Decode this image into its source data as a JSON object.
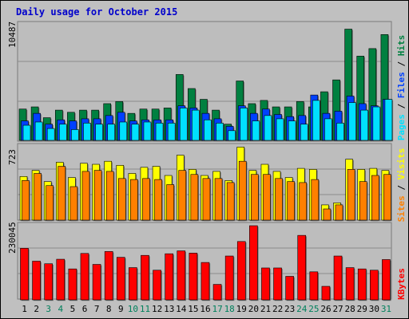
{
  "title": "Daily usage for October 2015",
  "colors": {
    "background": "#C0C0C0",
    "title": "#0000CC",
    "hits": "#008040",
    "files": "#0040FF",
    "pages": "#00E0FF",
    "visits": "#FFFF00",
    "sites": "#FF8000",
    "kbytes": "#FF0000",
    "weekend_label": "#00805C",
    "weekday_label": "#000000"
  },
  "chart_data": [
    {
      "type": "bar",
      "panel": "hits-files-pages",
      "y_axis_label": "10487",
      "right_labels": [
        "Pages",
        "Files",
        "Hits"
      ],
      "ylim": [
        0,
        10487
      ],
      "categories": [
        "1",
        "2",
        "3",
        "4",
        "5",
        "6",
        "7",
        "8",
        "9",
        "10",
        "11",
        "12",
        "13",
        "14",
        "15",
        "16",
        "17",
        "18",
        "19",
        "20",
        "21",
        "22",
        "23",
        "24",
        "25",
        "26",
        "27",
        "28",
        "29",
        "30",
        "31"
      ],
      "weekend_days": [
        "3",
        "4",
        "10",
        "11",
        "17",
        "18",
        "24",
        "25",
        "31"
      ],
      "series": [
        {
          "name": "Hits",
          "values": [
            2900,
            3100,
            2100,
            2800,
            2600,
            2800,
            2800,
            3400,
            3600,
            2500,
            2900,
            2900,
            3000,
            6100,
            4800,
            3800,
            2800,
            1500,
            5500,
            3400,
            3700,
            3100,
            3100,
            3600,
            3100,
            4500,
            5600,
            10300,
            7800,
            8500,
            9800
          ]
        },
        {
          "name": "Files",
          "values": [
            1800,
            2500,
            1500,
            1900,
            1800,
            2000,
            2000,
            2300,
            2600,
            1800,
            1900,
            1900,
            1900,
            3200,
            3000,
            2500,
            2000,
            1300,
            3200,
            2500,
            2900,
            2400,
            2200,
            2300,
            4200,
            2500,
            2700,
            4100,
            3400,
            3200,
            3800
          ]
        },
        {
          "name": "Pages",
          "values": [
            1400,
            1700,
            1100,
            1500,
            1000,
            1600,
            1500,
            1500,
            1700,
            1500,
            1700,
            1600,
            1600,
            3000,
            2800,
            1900,
            1600,
            900,
            3000,
            1800,
            2300,
            2000,
            1800,
            1500,
            3700,
            2000,
            1600,
            3500,
            2800,
            3100,
            3800
          ]
        }
      ]
    },
    {
      "type": "bar",
      "panel": "sites-visits",
      "y_axis_label": "723",
      "right_labels": [
        "Sites",
        "Visits"
      ],
      "ylim": [
        0,
        723
      ],
      "categories": [
        "1",
        "2",
        "3",
        "4",
        "5",
        "6",
        "7",
        "8",
        "9",
        "10",
        "11",
        "12",
        "13",
        "14",
        "15",
        "16",
        "17",
        "18",
        "19",
        "20",
        "21",
        "22",
        "23",
        "24",
        "25",
        "26",
        "27",
        "28",
        "29",
        "30",
        "31"
      ],
      "series": [
        {
          "name": "Visits",
          "values": [
            430,
            490,
            380,
            570,
            420,
            560,
            550,
            580,
            540,
            460,
            520,
            530,
            440,
            640,
            500,
            440,
            480,
            390,
            720,
            490,
            550,
            480,
            420,
            510,
            500,
            150,
            170,
            600,
            500,
            510,
            490
          ]
        },
        {
          "name": "Sites",
          "values": [
            390,
            460,
            340,
            530,
            330,
            480,
            490,
            480,
            410,
            400,
            410,
            400,
            350,
            490,
            450,
            410,
            410,
            370,
            580,
            450,
            450,
            410,
            380,
            370,
            400,
            110,
            150,
            500,
            380,
            440,
            450
          ]
        }
      ]
    },
    {
      "type": "bar",
      "panel": "kbytes",
      "y_axis_label": "230045",
      "right_labels": [
        "KBytes"
      ],
      "ylim": [
        0,
        230045
      ],
      "categories": [
        "1",
        "2",
        "3",
        "4",
        "5",
        "6",
        "7",
        "8",
        "9",
        "10",
        "11",
        "12",
        "13",
        "14",
        "15",
        "16",
        "17",
        "18",
        "19",
        "20",
        "21",
        "22",
        "23",
        "24",
        "25",
        "26",
        "27",
        "28",
        "29",
        "30",
        "31"
      ],
      "series": [
        {
          "name": "KBytes",
          "values": [
            160000,
            120000,
            112000,
            126000,
            96000,
            144000,
            110000,
            150000,
            132000,
            100000,
            138000,
            92000,
            143000,
            152000,
            145000,
            116000,
            48000,
            136000,
            181000,
            230000,
            99000,
            99000,
            73000,
            200000,
            87000,
            42000,
            136000,
            100000,
            96000,
            92000,
            125000
          ]
        }
      ]
    }
  ]
}
